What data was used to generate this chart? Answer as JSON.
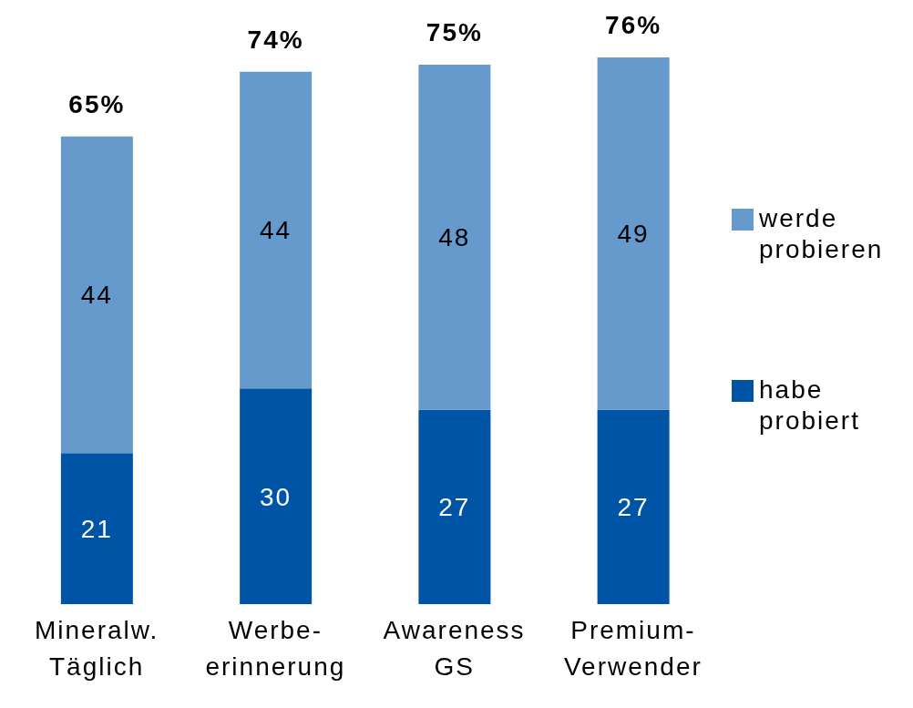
{
  "chart_data": {
    "type": "bar",
    "stacked": true,
    "categories": [
      "Mineralw.\nTäglich",
      "Werbe-\nerinnerung",
      "Awareness\nGS",
      "Premium-\nVerwender"
    ],
    "series": [
      {
        "name": "habe probiert",
        "color": "#0054a6",
        "values": [
          21,
          30,
          27,
          27
        ]
      },
      {
        "name": "werde probieren",
        "color": "#6699cc",
        "values": [
          44,
          44,
          48,
          49
        ]
      }
    ],
    "data_labels": true,
    "totals": [
      "65%",
      "74%",
      "75%",
      "76%"
    ],
    "legend": "right",
    "grid": false
  }
}
